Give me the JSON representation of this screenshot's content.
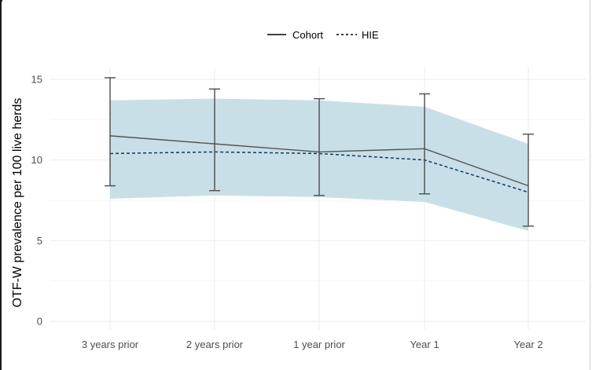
{
  "chart_data": {
    "type": "line",
    "title": "",
    "xlabel": "",
    "ylabel": "OTF-W prevalence per 100 live herds",
    "categories": [
      "3 years prior",
      "2 years prior",
      "1 year prior",
      "Year 1",
      "Year 2"
    ],
    "ylim": [
      0,
      15
    ],
    "yticks": [
      0,
      5,
      10,
      15
    ],
    "grid": true,
    "legend_position": "top",
    "series": [
      {
        "name": "Cohort",
        "style": "solid",
        "color": "#555555",
        "values": [
          11.5,
          11.0,
          10.5,
          10.7,
          8.4
        ],
        "error_lower": [
          8.4,
          8.1,
          7.8,
          7.9,
          5.9
        ],
        "error_upper": [
          15.1,
          14.4,
          13.8,
          14.1,
          11.6
        ]
      },
      {
        "name": "HIE",
        "style": "dashed",
        "color": "#0b3a5a",
        "values": [
          10.4,
          10.5,
          10.4,
          10.0,
          8.0
        ],
        "band_lower": [
          7.6,
          7.8,
          7.7,
          7.4,
          5.6
        ],
        "band_upper": [
          13.7,
          13.8,
          13.7,
          13.3,
          11.0
        ],
        "band_color": "#c9dfe8"
      }
    ]
  }
}
